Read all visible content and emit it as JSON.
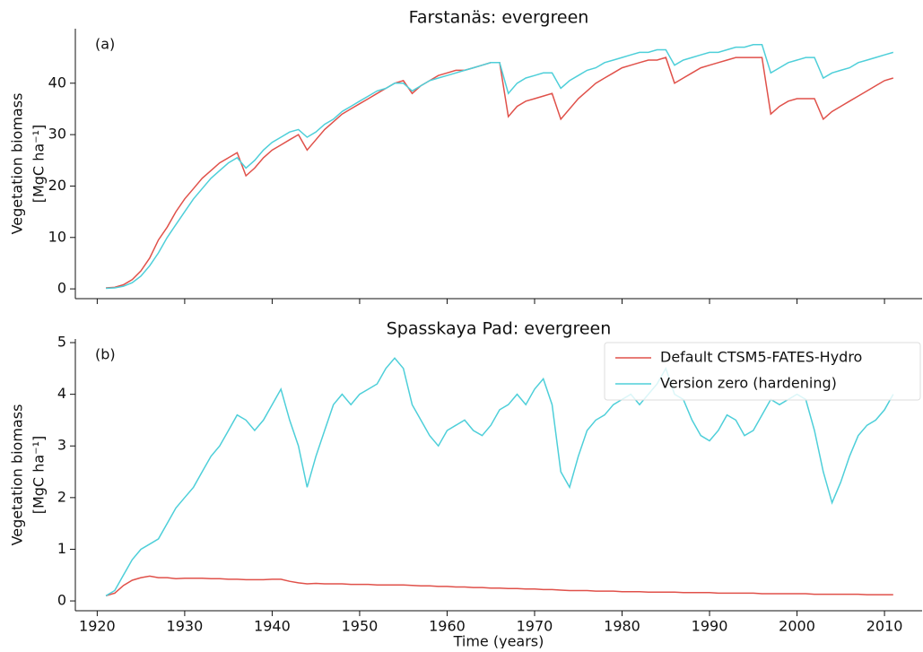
{
  "chart_data": [
    {
      "type": "line",
      "title": "Farstanäs: evergreen",
      "panel_label": "(a)",
      "ylabel": [
        "Vegetation biomass",
        "[MgC ha⁻¹]"
      ],
      "x": [
        1921,
        1922,
        1923,
        1924,
        1925,
        1926,
        1927,
        1928,
        1929,
        1930,
        1931,
        1932,
        1933,
        1934,
        1935,
        1936,
        1937,
        1938,
        1939,
        1940,
        1941,
        1942,
        1943,
        1944,
        1945,
        1946,
        1947,
        1948,
        1949,
        1950,
        1951,
        1952,
        1953,
        1954,
        1955,
        1956,
        1957,
        1958,
        1959,
        1960,
        1961,
        1962,
        1963,
        1964,
        1965,
        1966,
        1967,
        1968,
        1969,
        1970,
        1971,
        1972,
        1973,
        1974,
        1975,
        1976,
        1977,
        1978,
        1979,
        1980,
        1981,
        1982,
        1983,
        1984,
        1985,
        1986,
        1987,
        1988,
        1989,
        1990,
        1991,
        1992,
        1993,
        1994,
        1995,
        1996,
        1997,
        1998,
        1999,
        2000,
        2001,
        2002,
        2003,
        2004,
        2005,
        2006,
        2007,
        2008,
        2009,
        2010,
        2011
      ],
      "series": [
        {
          "name": "Default CTSM5-FATES-Hydro",
          "color": "#e0514a",
          "values": [
            0.2,
            0.3,
            0.8,
            1.8,
            3.5,
            6,
            9.5,
            12,
            15,
            17.5,
            19.5,
            21.5,
            23,
            24.5,
            25.5,
            26.5,
            22,
            23.5,
            25.5,
            27,
            28,
            29,
            30,
            27,
            29,
            31,
            32.5,
            34,
            35,
            36,
            37,
            38,
            39,
            40,
            40.5,
            38,
            39.5,
            40.5,
            41.5,
            42,
            42.5,
            42.5,
            43,
            43.5,
            44,
            44,
            33.5,
            35.5,
            36.5,
            37,
            37.5,
            38,
            33,
            35,
            37,
            38.5,
            40,
            41,
            42,
            43,
            43.5,
            44,
            44.5,
            44.5,
            45,
            40,
            41,
            42,
            43,
            43.5,
            44,
            44.5,
            45,
            45,
            45,
            45,
            34,
            35.5,
            36.5,
            37,
            37,
            37,
            33,
            34.5,
            35.5,
            36.5,
            37.5,
            38.5,
            39.5,
            40.5,
            41
          ]
        },
        {
          "name": "Version zero (hardening)",
          "color": "#4ecfd9",
          "values": [
            0.1,
            0.2,
            0.5,
            1.2,
            2.5,
            4.5,
            7,
            10,
            12.5,
            15,
            17.5,
            19.5,
            21.5,
            23,
            24.5,
            25.5,
            23.5,
            25,
            27,
            28.5,
            29.5,
            30.5,
            31,
            29.5,
            30.5,
            32,
            33,
            34.5,
            35.5,
            36.5,
            37.5,
            38.5,
            39,
            40,
            40,
            38.5,
            39.5,
            40.5,
            41,
            41.5,
            42,
            42.5,
            43,
            43.5,
            44,
            44,
            38,
            40,
            41,
            41.5,
            42,
            42,
            39,
            40.5,
            41.5,
            42.5,
            43,
            44,
            44.5,
            45,
            45.5,
            46,
            46,
            46.5,
            46.5,
            43.5,
            44.5,
            45,
            45.5,
            46,
            46,
            46.5,
            47,
            47,
            47.5,
            47.5,
            42,
            43,
            44,
            44.5,
            45,
            45,
            41,
            42,
            42.5,
            43,
            44,
            44.5,
            45,
            45.5,
            46
          ]
        }
      ],
      "xlim": [
        1917.5,
        2014.3
      ],
      "ylim": [
        -1.9,
        50.6
      ],
      "yticks": [
        0,
        10,
        20,
        30,
        40
      ]
    },
    {
      "type": "line",
      "title": "Spasskaya Pad: evergreen",
      "panel_label": "(b)",
      "ylabel": [
        "Vegetation biomass",
        "[MgC ha⁻¹]"
      ],
      "xlabel": "Time (years)",
      "x": [
        1921,
        1922,
        1923,
        1924,
        1925,
        1926,
        1927,
        1928,
        1929,
        1930,
        1931,
        1932,
        1933,
        1934,
        1935,
        1936,
        1937,
        1938,
        1939,
        1940,
        1941,
        1942,
        1943,
        1944,
        1945,
        1946,
        1947,
        1948,
        1949,
        1950,
        1951,
        1952,
        1953,
        1954,
        1955,
        1956,
        1957,
        1958,
        1959,
        1960,
        1961,
        1962,
        1963,
        1964,
        1965,
        1966,
        1967,
        1968,
        1969,
        1970,
        1971,
        1972,
        1973,
        1974,
        1975,
        1976,
        1977,
        1978,
        1979,
        1980,
        1981,
        1982,
        1983,
        1984,
        1985,
        1986,
        1987,
        1988,
        1989,
        1990,
        1991,
        1992,
        1993,
        1994,
        1995,
        1996,
        1997,
        1998,
        1999,
        2000,
        2001,
        2002,
        2003,
        2004,
        2005,
        2006,
        2007,
        2008,
        2009,
        2010,
        2011
      ],
      "series": [
        {
          "name": "Default CTSM5-FATES-Hydro",
          "color": "#e0514a",
          "values": [
            0.1,
            0.15,
            0.3,
            0.4,
            0.45,
            0.48,
            0.45,
            0.45,
            0.43,
            0.44,
            0.44,
            0.44,
            0.43,
            0.43,
            0.42,
            0.42,
            0.41,
            0.41,
            0.41,
            0.42,
            0.42,
            0.38,
            0.35,
            0.33,
            0.34,
            0.33,
            0.33,
            0.33,
            0.32,
            0.32,
            0.32,
            0.31,
            0.31,
            0.31,
            0.31,
            0.3,
            0.29,
            0.29,
            0.28,
            0.28,
            0.27,
            0.27,
            0.26,
            0.26,
            0.25,
            0.25,
            0.24,
            0.24,
            0.23,
            0.23,
            0.22,
            0.22,
            0.21,
            0.2,
            0.2,
            0.2,
            0.19,
            0.19,
            0.19,
            0.18,
            0.18,
            0.18,
            0.17,
            0.17,
            0.17,
            0.17,
            0.16,
            0.16,
            0.16,
            0.16,
            0.15,
            0.15,
            0.15,
            0.15,
            0.15,
            0.14,
            0.14,
            0.14,
            0.14,
            0.14,
            0.14,
            0.13,
            0.13,
            0.13,
            0.13,
            0.13,
            0.13,
            0.12,
            0.12,
            0.12,
            0.12
          ]
        },
        {
          "name": "Version zero (hardening)",
          "color": "#4ecfd9",
          "values": [
            0.1,
            0.2,
            0.5,
            0.8,
            1.0,
            1.1,
            1.2,
            1.5,
            1.8,
            2.0,
            2.2,
            2.5,
            2.8,
            3.0,
            3.3,
            3.6,
            3.5,
            3.3,
            3.5,
            3.8,
            4.1,
            3.5,
            3.0,
            2.2,
            2.8,
            3.3,
            3.8,
            4.0,
            3.8,
            4.0,
            4.1,
            4.2,
            4.5,
            4.7,
            4.5,
            3.8,
            3.5,
            3.2,
            3.0,
            3.3,
            3.4,
            3.5,
            3.3,
            3.2,
            3.4,
            3.7,
            3.8,
            4.0,
            3.8,
            4.1,
            4.3,
            3.8,
            2.5,
            2.2,
            2.8,
            3.3,
            3.5,
            3.6,
            3.8,
            3.9,
            4.0,
            3.8,
            4.0,
            4.2,
            4.5,
            4.0,
            3.9,
            3.5,
            3.2,
            3.1,
            3.3,
            3.6,
            3.5,
            3.2,
            3.3,
            3.6,
            3.9,
            3.8,
            3.9,
            4.0,
            3.9,
            3.3,
            2.5,
            1.9,
            2.3,
            2.8,
            3.2,
            3.4,
            3.5,
            3.7,
            4.0
          ]
        }
      ],
      "xlim": [
        1917.5,
        2014.3
      ],
      "xticks": [
        1920,
        1930,
        1940,
        1950,
        1960,
        1970,
        1980,
        1990,
        2000,
        2010
      ],
      "ylim": [
        -0.19,
        5.07
      ],
      "yticks": [
        0,
        1,
        2,
        3,
        4,
        5
      ],
      "legend": "upper right"
    }
  ]
}
